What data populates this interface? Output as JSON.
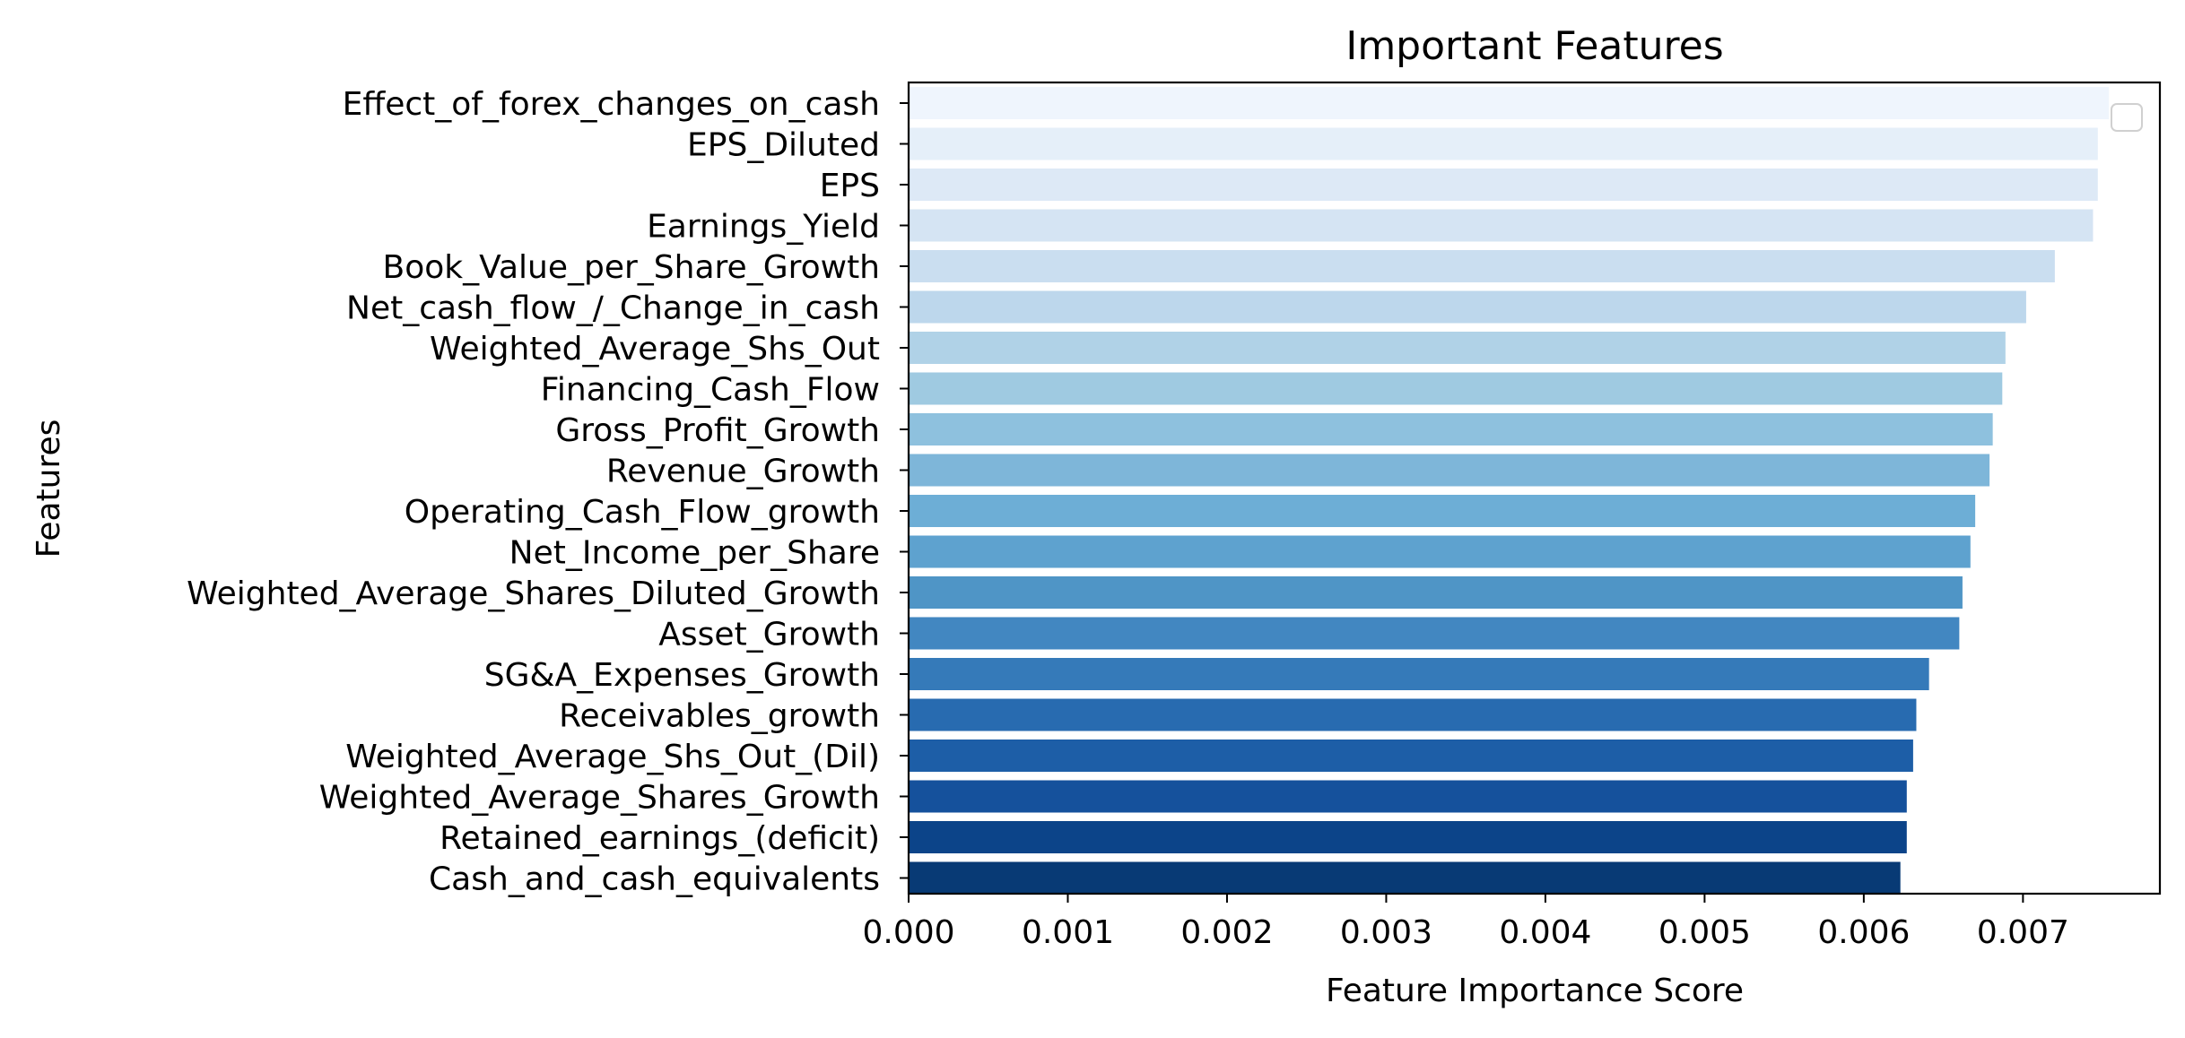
{
  "chart_data": {
    "type": "bar",
    "orientation": "horizontal",
    "title": "Important Features",
    "xlabel": "Feature Importance Score",
    "ylabel": "Features",
    "xlim": [
      0,
      0.00786
    ],
    "xticks": [
      "0.000",
      "0.001",
      "0.002",
      "0.003",
      "0.004",
      "0.005",
      "0.006",
      "0.007"
    ],
    "xtick_values": [
      0,
      0.001,
      0.002,
      0.003,
      0.004,
      0.005,
      0.006,
      0.007
    ],
    "grid": false,
    "legend": "top-right (empty)",
    "categories": [
      "Effect_of_forex_changes_on_cash",
      "EPS_Diluted",
      "EPS",
      "Earnings_Yield",
      "Book_Value_per_Share_Growth",
      "Net_cash_flow_/_Change_in_cash",
      "Weighted_Average_Shs_Out",
      "Financing_Cash_Flow",
      "Gross_Profit_Growth",
      "Revenue_Growth",
      "Operating_Cash_Flow_growth",
      "Net_Income_per_Share",
      "Weighted_Average_Shares_Diluted_Growth",
      "Asset_Growth",
      "SG&A_Expenses_Growth",
      "Receivables_growth",
      "Weighted_Average_Shs_Out_(Dil)",
      "Weighted_Average_Shares_Growth",
      "Retained_earnings_(deficit)",
      "Cash_and_cash_equivalents"
    ],
    "values": [
      0.00754,
      0.00747,
      0.00747,
      0.00744,
      0.0072,
      0.00702,
      0.00689,
      0.00687,
      0.00681,
      0.00679,
      0.0067,
      0.00667,
      0.00662,
      0.0066,
      0.00641,
      0.00633,
      0.00631,
      0.00627,
      0.00627,
      0.00623
    ],
    "colors": [
      "#eff5fd",
      "#e5eff9",
      "#dde9f6",
      "#d5e4f3",
      "#cadef0",
      "#bdd7ec",
      "#b0d2e7",
      "#9fcae1",
      "#8ec1de",
      "#7eb6d9",
      "#6daed6",
      "#5ea2cf",
      "#4f95c6",
      "#4287c1",
      "#357ab9",
      "#286bb0",
      "#1d5ea7",
      "#15519c",
      "#0c4489",
      "#083a75"
    ]
  }
}
